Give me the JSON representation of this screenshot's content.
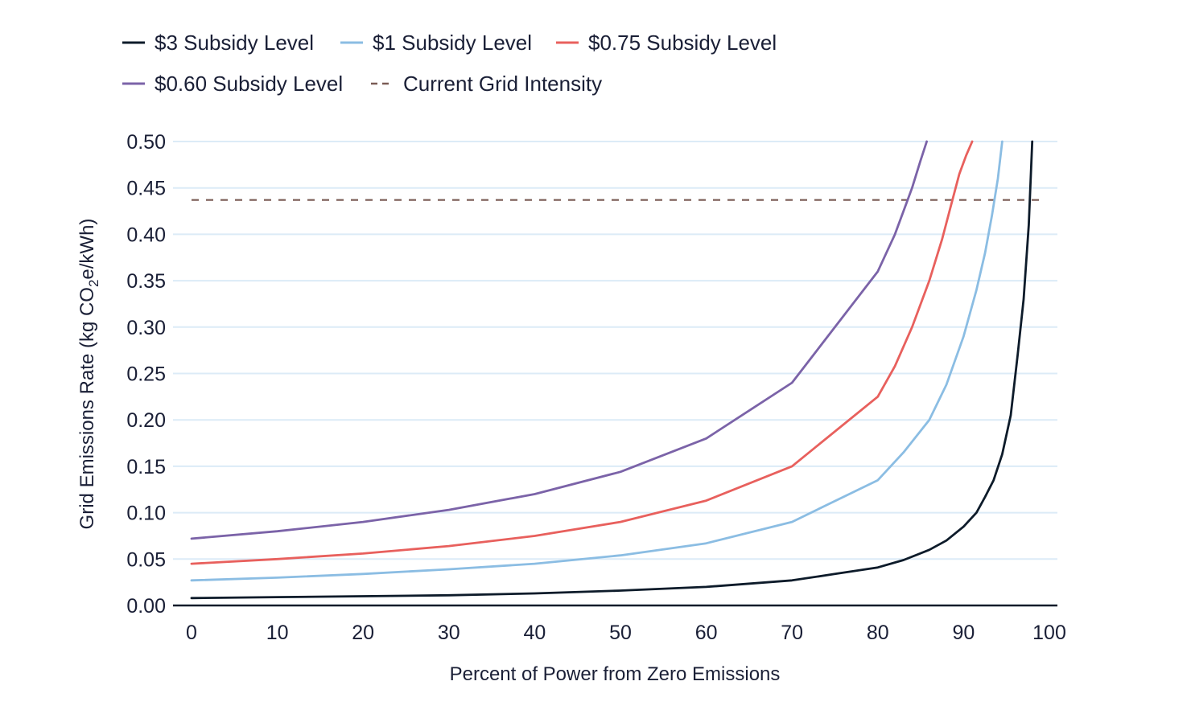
{
  "chart_data": {
    "type": "line",
    "title": "",
    "xlabel": "Percent of Power from Zero Emissions",
    "ylabel_parts": {
      "before": "Grid Emissions Rate (kg CO",
      "sub": "2",
      "after": "e/kWh)"
    },
    "xlim": [
      0,
      100
    ],
    "ylim": [
      0,
      0.5
    ],
    "x_ticks": [
      "0",
      "10",
      "20",
      "30",
      "40",
      "50",
      "60",
      "70",
      "80",
      "90",
      "100"
    ],
    "y_ticks": [
      "0.00",
      "0.05",
      "0.10",
      "0.15",
      "0.20",
      "0.25",
      "0.30",
      "0.35",
      "0.40",
      "0.45",
      "0.50"
    ],
    "grid": "horizontal",
    "legend_position": "top-left",
    "series": [
      {
        "name": "$3 Subsidy Level",
        "color": "#0d1b2a",
        "dash": false,
        "x": [
          0,
          10,
          20,
          30,
          40,
          50,
          60,
          70,
          75,
          80,
          83,
          86,
          88,
          90,
          91.5,
          92.5,
          93.5,
          94.5,
          95.5,
          96.3,
          97,
          97.6,
          98
        ],
        "y": [
          0.008,
          0.009,
          0.01,
          0.011,
          0.013,
          0.016,
          0.02,
          0.027,
          0.034,
          0.041,
          0.049,
          0.06,
          0.07,
          0.085,
          0.1,
          0.117,
          0.135,
          0.163,
          0.205,
          0.27,
          0.33,
          0.41,
          0.5
        ]
      },
      {
        "name": "$1 Subsidy Level",
        "color": "#8bbde3",
        "dash": false,
        "x": [
          0,
          10,
          20,
          30,
          40,
          50,
          60,
          70,
          80,
          83,
          86,
          88,
          90,
          91.5,
          92.5,
          93.3,
          94,
          94.5
        ],
        "y": [
          0.027,
          0.03,
          0.034,
          0.039,
          0.045,
          0.054,
          0.067,
          0.09,
          0.135,
          0.165,
          0.2,
          0.238,
          0.29,
          0.34,
          0.38,
          0.42,
          0.46,
          0.5
        ]
      },
      {
        "name": "$0.75 Subsidy Level",
        "color": "#e8605d",
        "dash": false,
        "x": [
          0,
          10,
          20,
          30,
          40,
          50,
          60,
          70,
          80,
          82,
          84,
          86,
          87.5,
          88.5,
          89.5,
          90.3,
          91
        ],
        "y": [
          0.045,
          0.05,
          0.056,
          0.064,
          0.075,
          0.09,
          0.113,
          0.15,
          0.225,
          0.258,
          0.3,
          0.35,
          0.395,
          0.43,
          0.465,
          0.485,
          0.5
        ]
      },
      {
        "name": "$0.60 Subsidy Level",
        "color": "#7b63a8",
        "dash": false,
        "x": [
          0,
          10,
          20,
          30,
          40,
          50,
          60,
          70,
          80,
          82,
          84,
          85,
          85.7
        ],
        "y": [
          0.072,
          0.08,
          0.09,
          0.103,
          0.12,
          0.144,
          0.18,
          0.24,
          0.36,
          0.4,
          0.45,
          0.48,
          0.5
        ]
      },
      {
        "name": "Current Grid Intensity",
        "color": "#7a5c55",
        "dash": true,
        "x": [
          0,
          99
        ],
        "y": [
          0.437,
          0.437
        ]
      }
    ]
  }
}
